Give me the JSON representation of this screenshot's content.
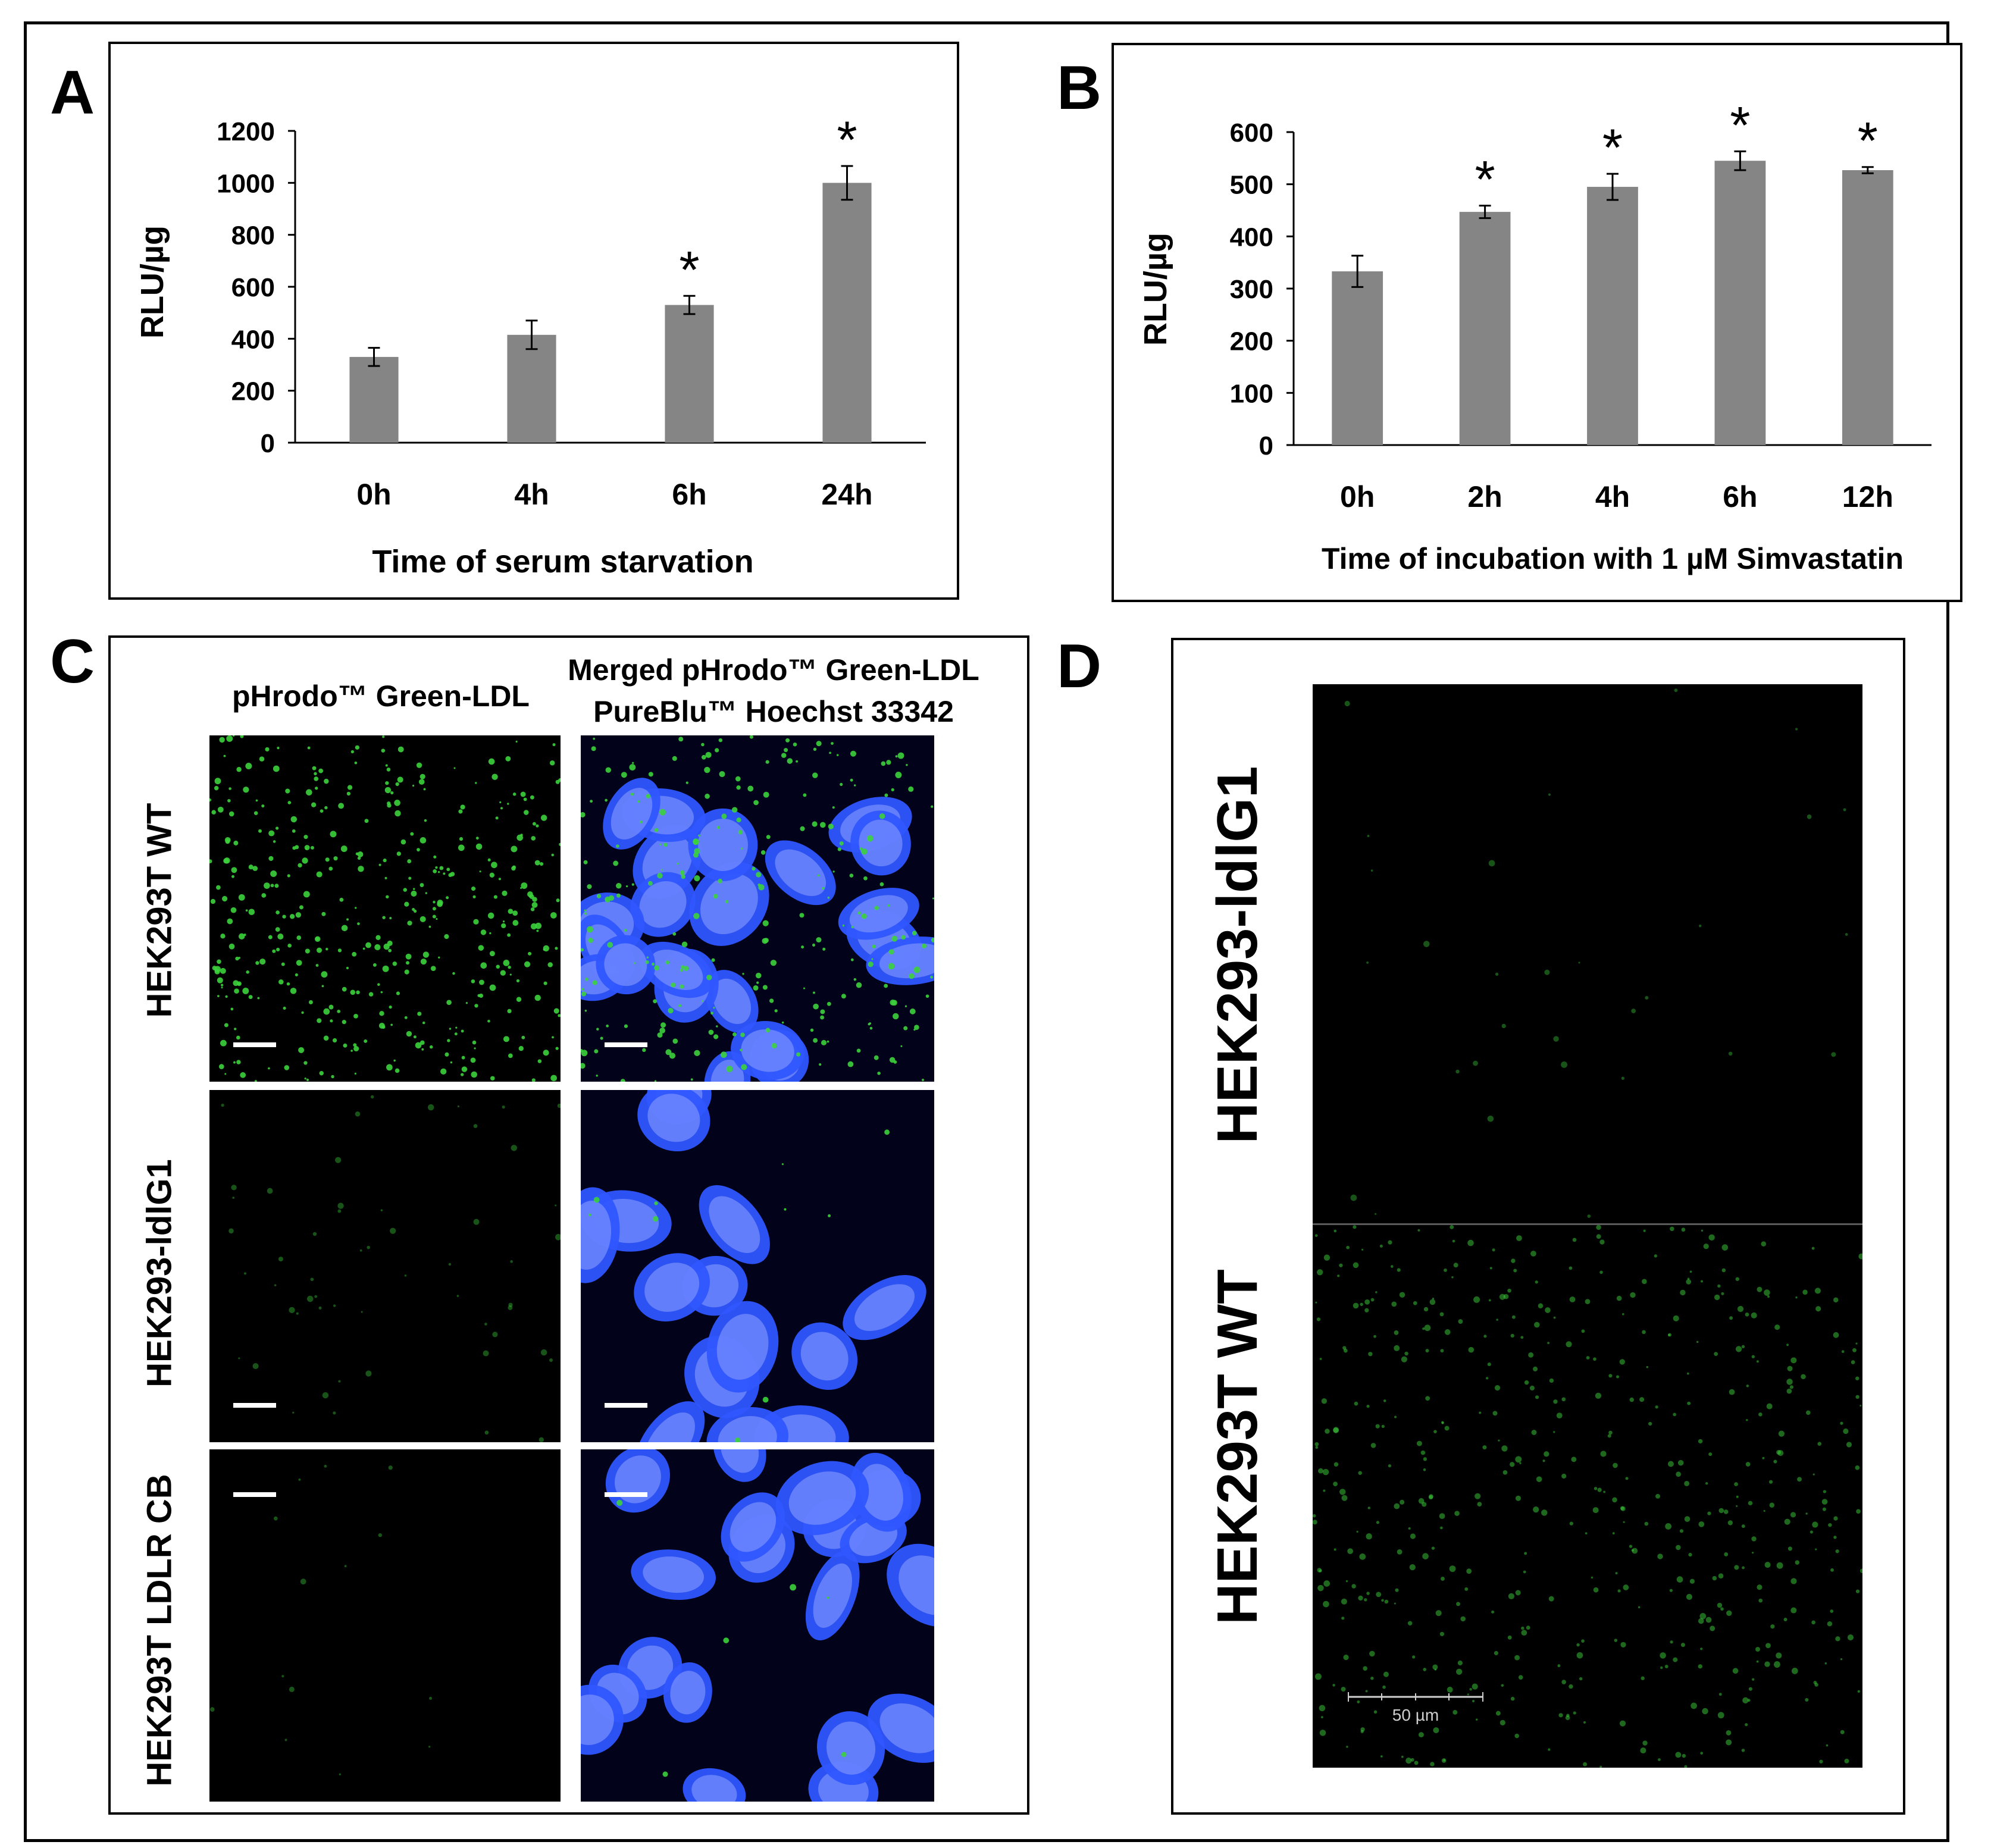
{
  "panels": {
    "a": {
      "label": "A"
    },
    "b": {
      "label": "B"
    },
    "c": {
      "label": "C",
      "columns": [
        "pHrodo™ Green-LDL",
        "Merged pHrodo™ Green-LDL",
        "PureBlu™ Hoechst 33342"
      ],
      "rows": [
        "HEK293T WT",
        "HEK293-ldlG1",
        "HEK293T LDLR CB"
      ]
    },
    "d": {
      "label": "D",
      "rows": [
        "HEK293-ldlG1",
        "HEK293T WT"
      ],
      "scale_bar": "50 µm"
    }
  },
  "colors": {
    "bar": "#858585",
    "green": "#3cd23c",
    "nucleus": "#2f56ff",
    "background": "#000000"
  },
  "chart_data": [
    {
      "type": "bar",
      "categories": [
        "0h",
        "4h",
        "6h",
        "24h"
      ],
      "values": [
        330,
        415,
        530,
        1000
      ],
      "errors": [
        35,
        55,
        35,
        65
      ],
      "significant": [
        false,
        false,
        true,
        true
      ],
      "sig_marker": "*",
      "xlabel": "Time of serum starvation",
      "ylabel": "RLU/µg",
      "ylim": [
        0,
        1200
      ],
      "yticks": [
        0,
        200,
        400,
        600,
        800,
        1000,
        1200
      ]
    },
    {
      "type": "bar",
      "categories": [
        "0h",
        "2h",
        "4h",
        "6h",
        "12h"
      ],
      "values": [
        333,
        447,
        495,
        545,
        527
      ],
      "errors": [
        30,
        12,
        25,
        18,
        6
      ],
      "significant": [
        false,
        true,
        true,
        true,
        true
      ],
      "sig_marker": "*",
      "xlabel": "Time of incubation with 1 µM Simvastatin",
      "ylabel": "RLU/µg",
      "ylim": [
        0,
        600
      ],
      "yticks": [
        0,
        100,
        200,
        300,
        400,
        500,
        600
      ]
    }
  ]
}
